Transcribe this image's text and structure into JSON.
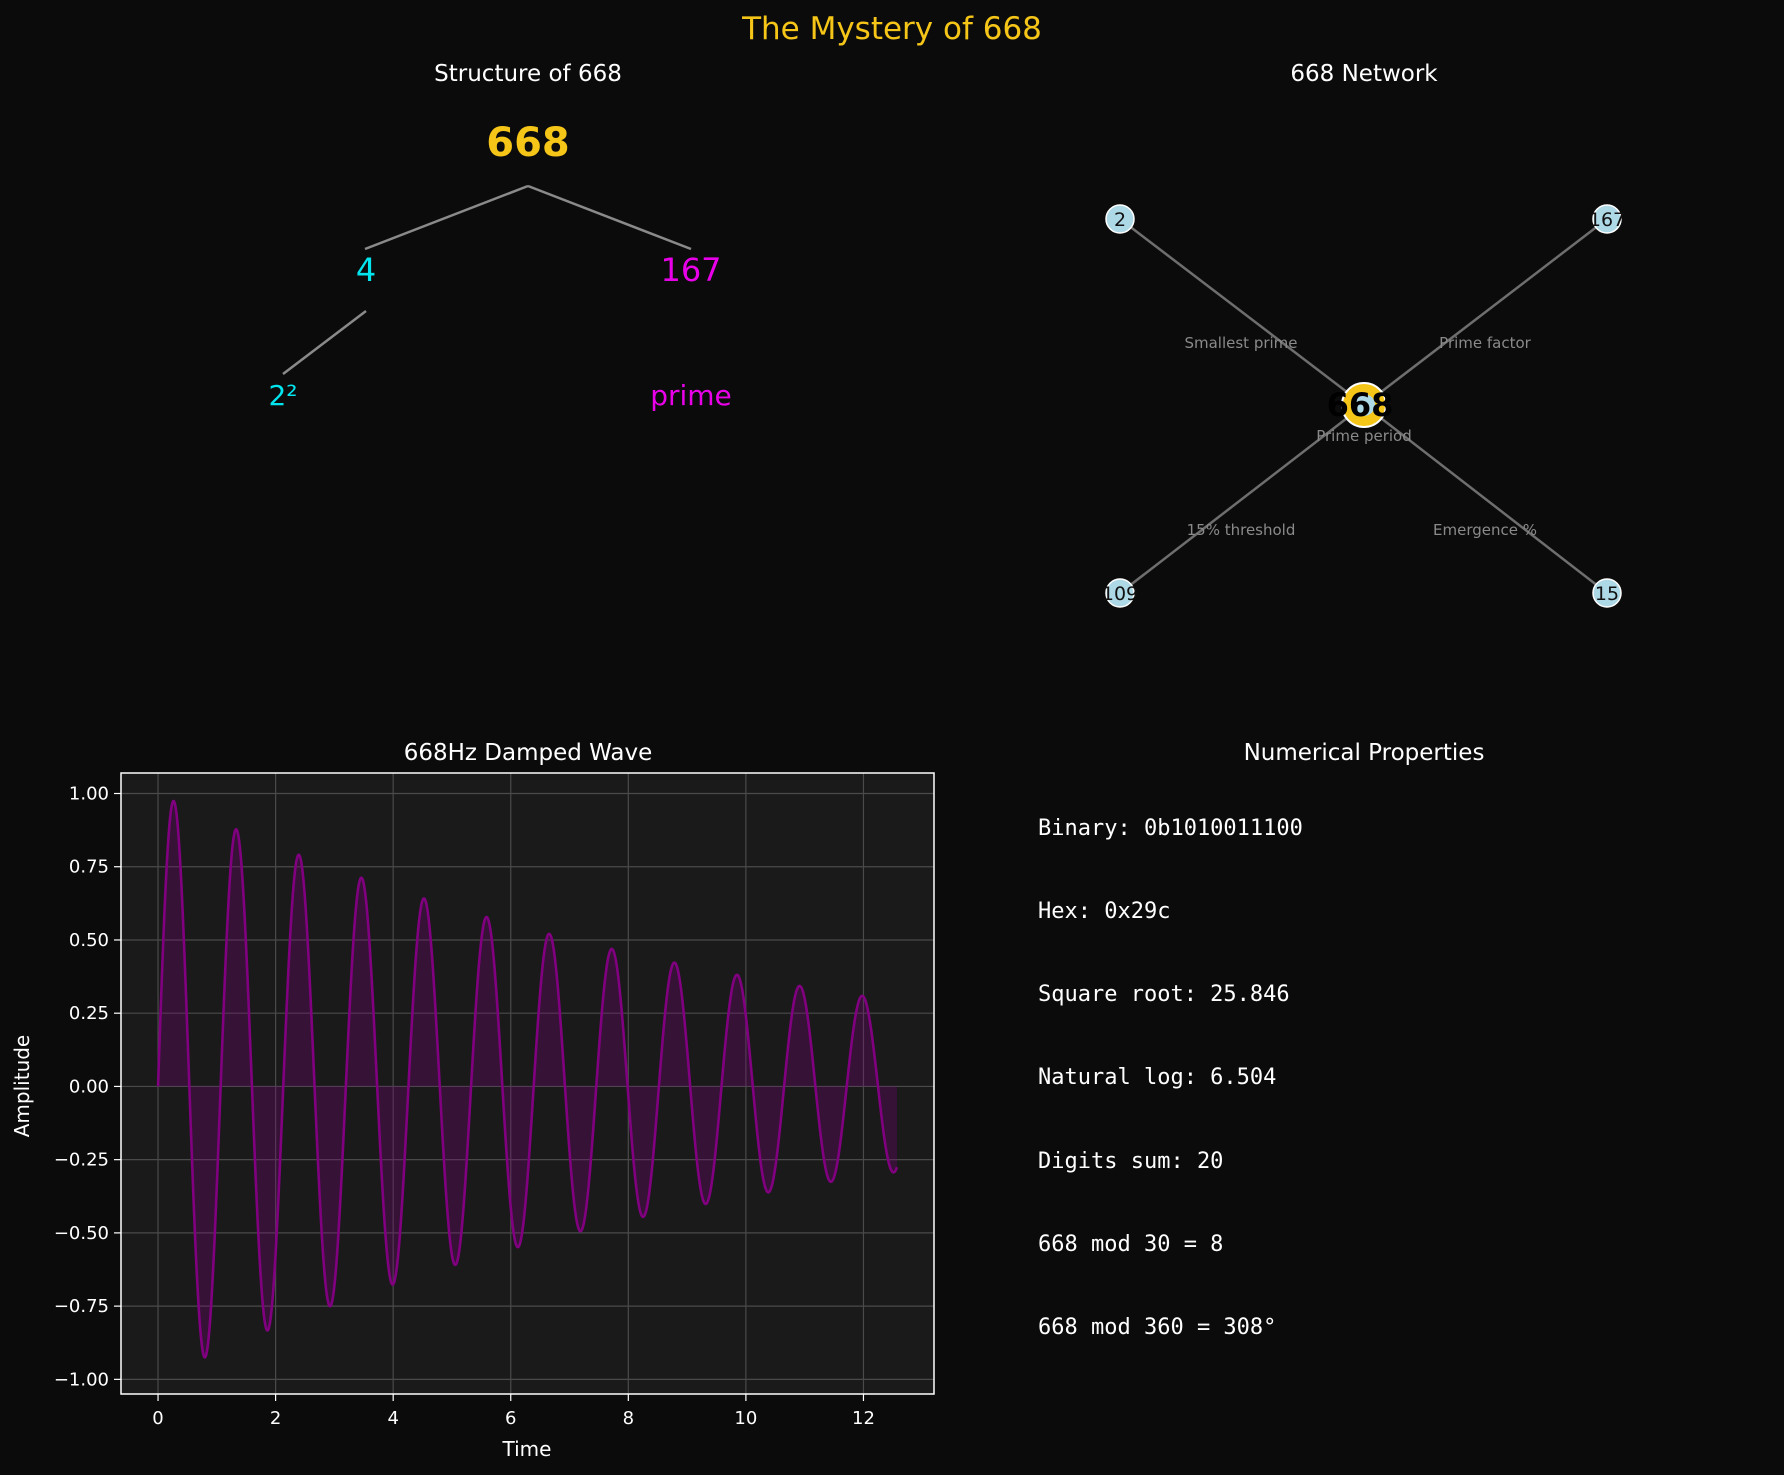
{
  "figure": {
    "suptitle": "The Mystery of 668",
    "colors": {
      "background": "#0b0b0b",
      "gold": "#f5c518",
      "cyan": "#00e5ee",
      "magenta": "#e800e8",
      "text": "#ffffff",
      "edge": "#8a8a8a",
      "node": "#add8e6",
      "wave": "#800080"
    }
  },
  "tree": {
    "title": "Structure of 668",
    "root": "668",
    "left": "4",
    "right": "167",
    "left_child": "2²",
    "right_child": "prime"
  },
  "network": {
    "title": "668 Network",
    "center": "668",
    "nodes": [
      {
        "label": "2",
        "edge_label": "Smallest prime"
      },
      {
        "label": "167",
        "edge_label": "Prime factor"
      },
      {
        "label": "109",
        "edge_label": "15% threshold"
      },
      {
        "label": "15",
        "edge_label": "Emergence %"
      }
    ],
    "center_label": "Prime period"
  },
  "chart_data": {
    "type": "line",
    "title": "668Hz Damped Wave",
    "xlabel": "Time",
    "ylabel": "Amplitude",
    "xlim": [
      -0.63,
      13.2
    ],
    "ylim": [
      -1.05,
      1.07
    ],
    "xticks": [
      "0",
      "2",
      "4",
      "6",
      "8",
      "10",
      "12"
    ],
    "yticks": [
      "1.00",
      "0.75",
      "0.50",
      "0.25",
      "0.00",
      "−0.25",
      "−0.50",
      "−0.75",
      "−1.00"
    ],
    "grid": true,
    "fill_to_zero": true,
    "series": [
      {
        "function": "y = sin(2π·x/1.065)·exp(−0.098·x)",
        "x_range": [
          0,
          12.57
        ],
        "peaks": [
          [
            0.26,
            0.975
          ],
          [
            1.2,
            0.89
          ],
          [
            2.13,
            0.81
          ],
          [
            3.06,
            0.735
          ],
          [
            4.0,
            0.67
          ],
          [
            4.93,
            0.61
          ],
          [
            5.87,
            0.555
          ],
          [
            6.8,
            0.505
          ],
          [
            7.73,
            0.46
          ],
          [
            8.66,
            0.42
          ],
          [
            9.6,
            0.38
          ],
          [
            10.53,
            0.345
          ],
          [
            11.47,
            0.315
          ],
          [
            12.4,
            0.285
          ]
        ],
        "troughs": [
          [
            0.73,
            -0.93
          ],
          [
            1.67,
            -0.85
          ],
          [
            2.6,
            -0.77
          ],
          [
            3.53,
            -0.7
          ],
          [
            4.47,
            -0.64
          ],
          [
            5.4,
            -0.58
          ],
          [
            6.33,
            -0.53
          ],
          [
            7.27,
            -0.48
          ],
          [
            8.2,
            -0.44
          ],
          [
            9.13,
            -0.4
          ],
          [
            10.07,
            -0.36
          ],
          [
            11.0,
            -0.33
          ],
          [
            11.93,
            -0.3
          ]
        ]
      }
    ]
  },
  "properties": {
    "title": "Numerical Properties",
    "lines": [
      "Binary: 0b1010011100",
      "Hex: 0x29c",
      "Square root: 25.846",
      "Natural log: 6.504",
      "Digits sum: 20",
      "668 mod 30 = 8",
      "668 mod 360 = 308°"
    ]
  }
}
